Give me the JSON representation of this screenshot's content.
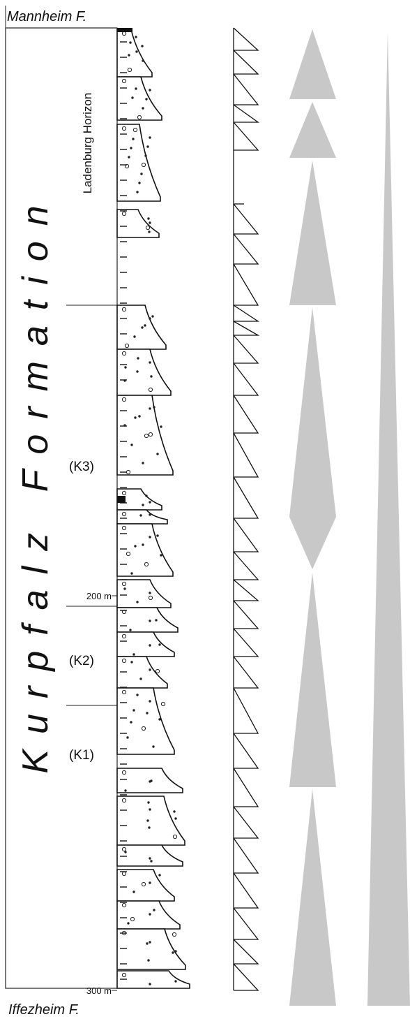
{
  "header": {
    "top_unit": "Mannheim F.",
    "bottom_unit": "Iffezheim F."
  },
  "formation": "Kurpfalz Formation",
  "horizon": "Ladenburg Horizon",
  "members": [
    "(K3)",
    "(K2)",
    "(K1)"
  ],
  "depth_labels": [
    "200 m",
    "300 m"
  ]
}
